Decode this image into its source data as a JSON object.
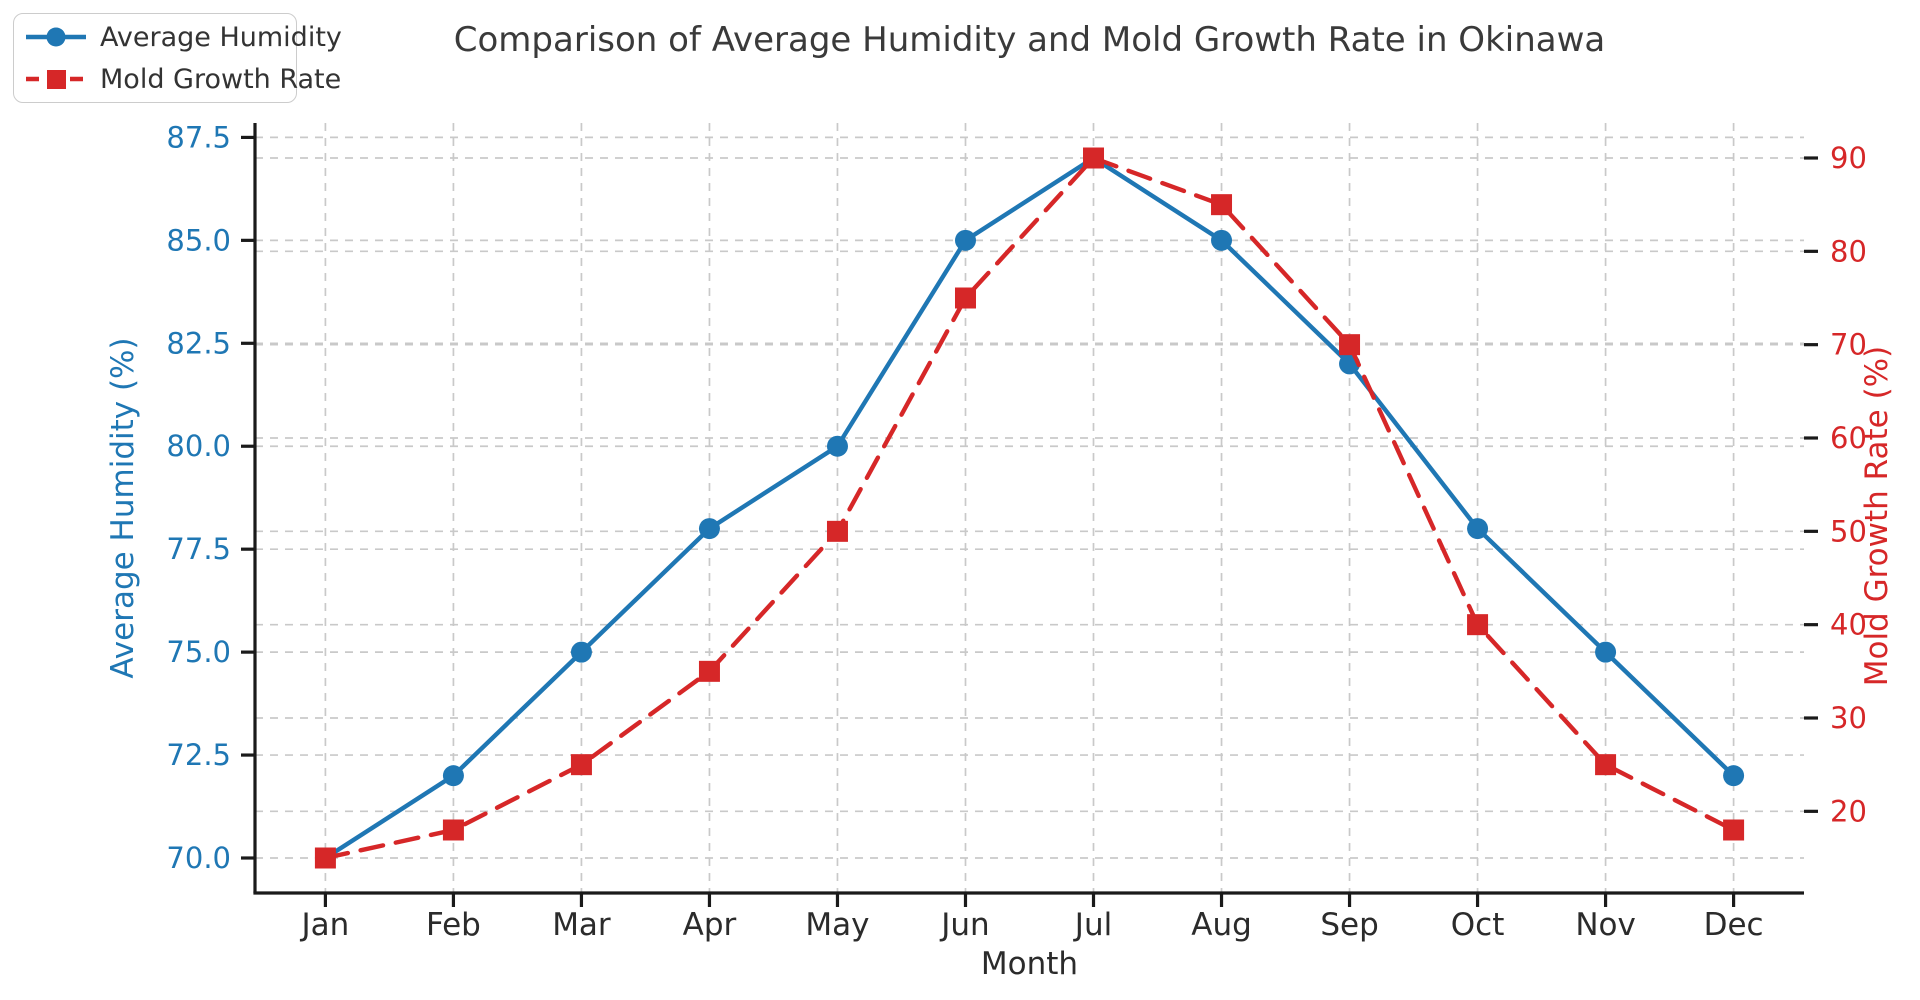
{
  "figure": {
    "title": "Comparison of Average Humidity and Mold Growth Rate in Okinawa"
  },
  "legend": {
    "position": "upper left",
    "items": [
      {
        "label": "Average Humidity",
        "color": "#1f77b4",
        "line_style": "solid",
        "marker": "circle"
      },
      {
        "label": "Mold Growth Rate",
        "color": "#d62728",
        "line_style": "dashed",
        "marker": "square"
      }
    ]
  },
  "chart_data": {
    "type": "line",
    "title": "Comparison of Average Humidity and Mold Growth Rate in Okinawa",
    "xlabel": "Month",
    "categories": [
      "Jan",
      "Feb",
      "Mar",
      "Apr",
      "May",
      "Jun",
      "Jul",
      "Aug",
      "Sep",
      "Oct",
      "Nov",
      "Dec"
    ],
    "series": [
      {
        "name": "Average Humidity",
        "axis": "left",
        "color": "#1f77b4",
        "line_style": "solid",
        "marker": "circle",
        "values": [
          70,
          72,
          75,
          78,
          80,
          85,
          87,
          85,
          82,
          78,
          75,
          72
        ]
      },
      {
        "name": "Mold Growth Rate",
        "axis": "right",
        "color": "#d62728",
        "line_style": "dashed",
        "marker": "square",
        "values": [
          15,
          18,
          25,
          35,
          50,
          75,
          90,
          85,
          70,
          40,
          25,
          18
        ]
      }
    ],
    "left_axis": {
      "label": "Average Humidity (%)",
      "color": "#1f77b4",
      "ticks": [
        87.5,
        85.0,
        82.5,
        80.0,
        77.5,
        75.0,
        72.5,
        70.0
      ],
      "tick_labels": [
        "87.5",
        "85.0",
        "82.5",
        "80.0",
        "77.5",
        "75.0",
        "72.5",
        "70.0"
      ],
      "range": [
        69.15,
        87.85
      ]
    },
    "right_axis": {
      "label": "Mold Growth Rate (%)",
      "color": "#d62728",
      "ticks": [
        90,
        80,
        70,
        60,
        50,
        40,
        30,
        20
      ],
      "tick_labels": [
        "90",
        "80",
        "70",
        "60",
        "50",
        "40",
        "30",
        "20"
      ],
      "range": [
        11.25,
        93.75
      ]
    },
    "x_range": [
      -0.55,
      11.55
    ],
    "grid": true,
    "grid_color": "#c9c9c9",
    "tick_color": "#1a1a1a",
    "x_tick_label_color": "#2b2b2b",
    "legend_position": "upper left"
  }
}
